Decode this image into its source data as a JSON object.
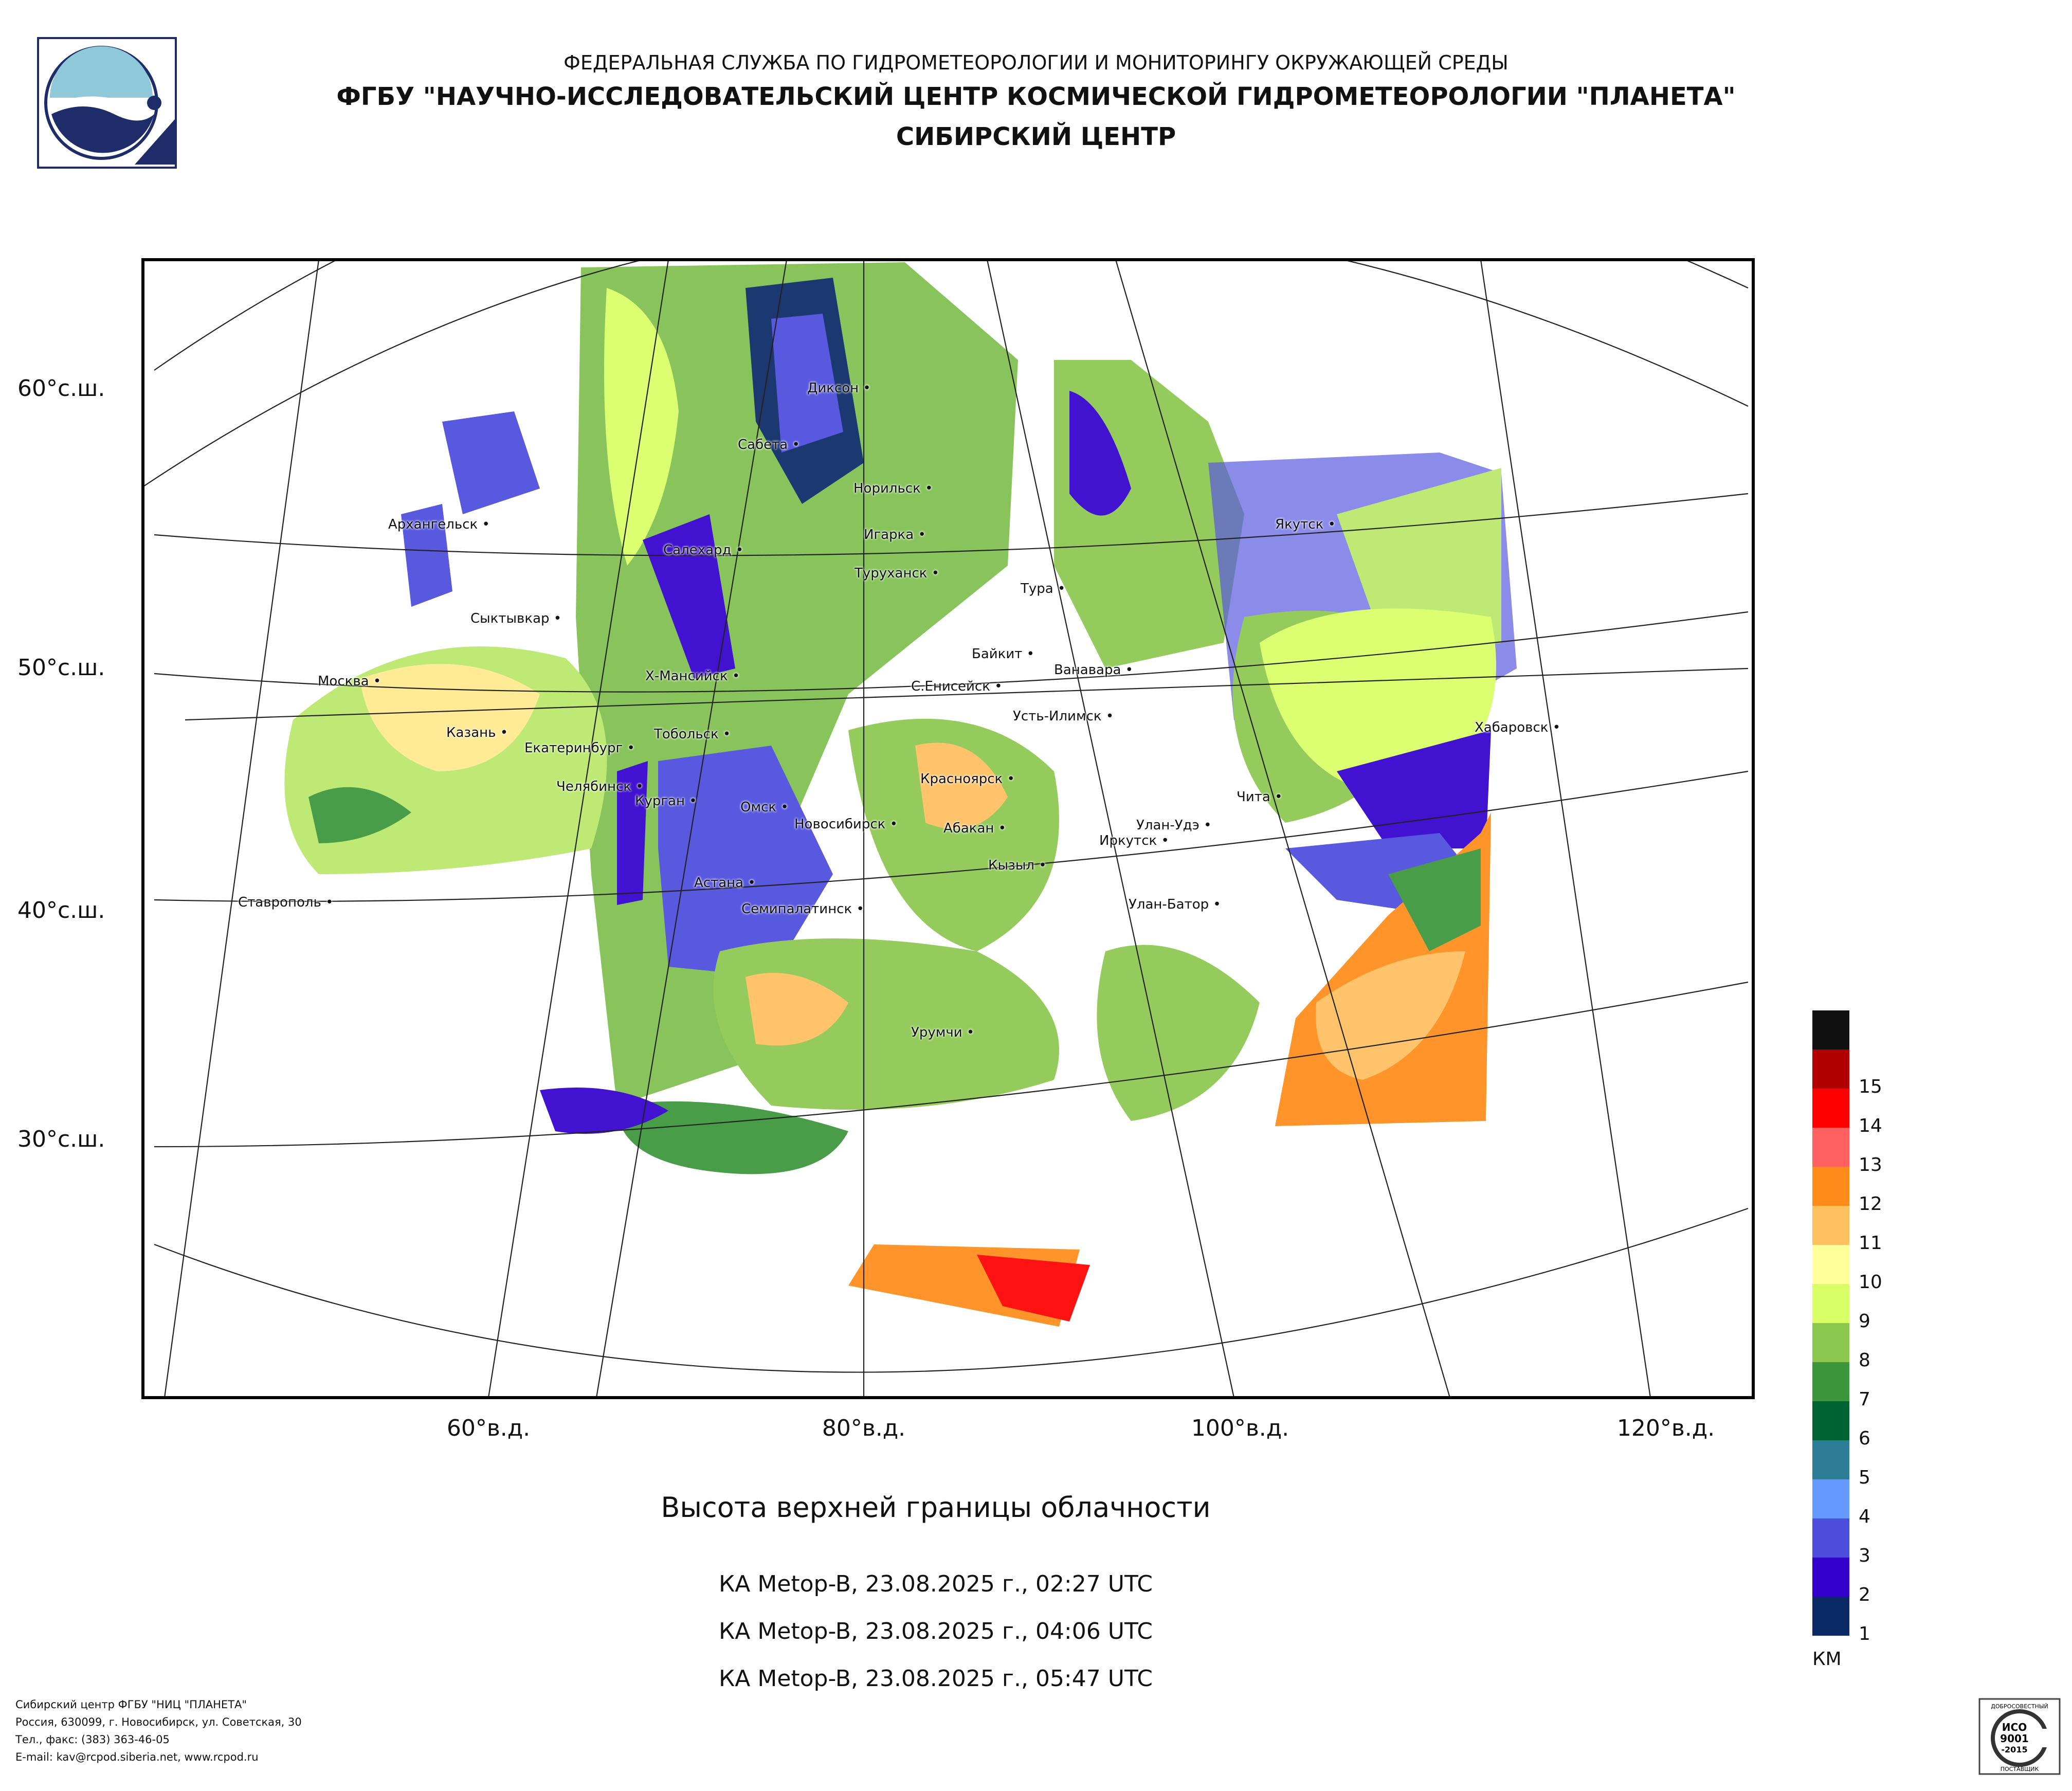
{
  "header": {
    "line1": "ФЕДЕРАЛЬНАЯ СЛУЖБА ПО ГИДРОМЕТЕОРОЛОГИИ И МОНИТОРИНГУ ОКРУЖАЮЩЕЙ СРЕДЫ",
    "line2": "ФГБУ \"НАУЧНО-ИССЛЕДОВАТЕЛЬСКИЙ ЦЕНТР КОСМИЧЕСКОЙ ГИДРОМЕТЕОРОЛОГИИ \"ПЛАНЕТА\"",
    "line3": "СИБИРСКИЙ ЦЕНТР"
  },
  "axes": {
    "latitudes": [
      "60°с.ш.",
      "50°с.ш.",
      "40°с.ш.",
      "30°с.ш."
    ],
    "longitudes": [
      "60°в.д.",
      "80°в.д.",
      "100°в.д.",
      "120°в.д."
    ]
  },
  "cities": [
    {
      "name": "Диксон"
    },
    {
      "name": "Сабета"
    },
    {
      "name": "Норильск"
    },
    {
      "name": "Якутск"
    },
    {
      "name": "Архангельск"
    },
    {
      "name": "Игарка"
    },
    {
      "name": "Салехард"
    },
    {
      "name": "Туруханск"
    },
    {
      "name": "Тура"
    },
    {
      "name": "Сыктывкар"
    },
    {
      "name": "Байкит"
    },
    {
      "name": "Ванавара"
    },
    {
      "name": "Москва"
    },
    {
      "name": "Х-Мансийск"
    },
    {
      "name": "С.Енисейск"
    },
    {
      "name": "Усть-Илимск"
    },
    {
      "name": "Хабаровск"
    },
    {
      "name": "Казань"
    },
    {
      "name": "Тобольск"
    },
    {
      "name": "Екатеринбург"
    },
    {
      "name": "Челябинск"
    },
    {
      "name": "Курган"
    },
    {
      "name": "Красноярск"
    },
    {
      "name": "Чита"
    },
    {
      "name": "Омск"
    },
    {
      "name": "Новосибирск"
    },
    {
      "name": "Абакан"
    },
    {
      "name": "Улан-Удэ"
    },
    {
      "name": "Иркутск"
    },
    {
      "name": "Кызыл"
    },
    {
      "name": "Астана"
    },
    {
      "name": "Ставрополь"
    },
    {
      "name": "Семипалатинск"
    },
    {
      "name": "Улан-Батор"
    },
    {
      "name": "Урумчи"
    }
  ],
  "title": "Высота верхней границы облачности",
  "passes": [
    "КА Metop-B, 23.08.2025 г., 02:27 UTC",
    "КА Metop-B, 23.08.2025 г., 04:06 UTC",
    "КА Metop-B, 23.08.2025 г., 05:47 UTC"
  ],
  "legend": {
    "unit": "КМ",
    "levels": [
      {
        "label": "",
        "color": "#111111"
      },
      {
        "label": "15",
        "color": "#b00000"
      },
      {
        "label": "14",
        "color": "#ff0000"
      },
      {
        "label": "13",
        "color": "#ff6060"
      },
      {
        "label": "12",
        "color": "#ff8c1a"
      },
      {
        "label": "11",
        "color": "#ffc060"
      },
      {
        "label": "10",
        "color": "#ffff99"
      },
      {
        "label": "9",
        "color": "#d9ff66"
      },
      {
        "label": "8",
        "color": "#8cc850"
      },
      {
        "label": "7",
        "color": "#3c963c"
      },
      {
        "label": "6",
        "color": "#006432"
      },
      {
        "label": "5",
        "color": "#2e7d96"
      },
      {
        "label": "4",
        "color": "#6699ff"
      },
      {
        "label": "3",
        "color": "#4d4ddd"
      },
      {
        "label": "2",
        "color": "#3300cc"
      },
      {
        "label": "1",
        "color": "#0a2a66"
      }
    ]
  },
  "footer": {
    "line1": "Сибирский центр ФГБУ \"НИЦ \"ПЛАНЕТА\"",
    "line2": "Россия, 630099, г. Новосибирск, ул. Советская, 30",
    "line3": "Тел., факс: (383) 363-46-05",
    "line4": "E-mail: kav@rcpod.siberia.net, www.rcpod.ru"
  },
  "cert": {
    "top": "ДОБРОСОВЕСТНЫЙ",
    "mid1": "ИСО",
    "mid2": "9001",
    "mid3": "-2015",
    "bottom": "ПОСТАВЩИК"
  }
}
